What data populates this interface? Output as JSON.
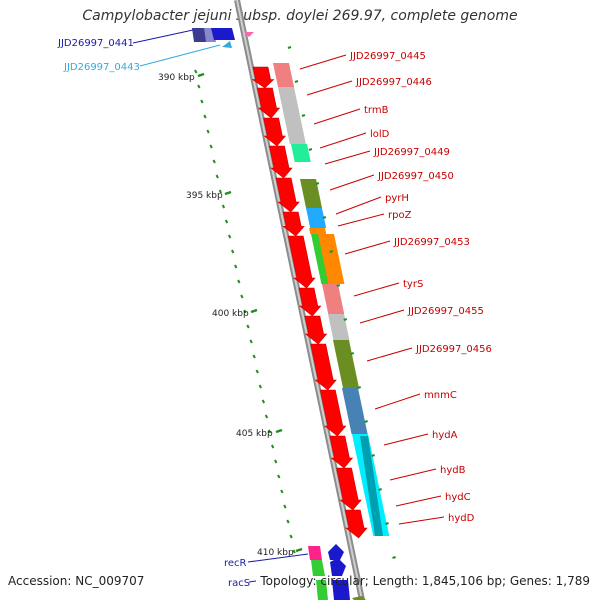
{
  "title": "Campylobacter jejuni subsp. doylei 269.97, complete genome",
  "accession": "Accession: NC_009707",
  "topology": "Topology: circular; Length: 1,845,106 bp; Genes: 1,789",
  "colors": {
    "backbone": "#8c8c8c",
    "forward_arrow": "#ff0000",
    "tick": "#1f8f1f",
    "label_red": "#c80000",
    "label_blue": "#1a1aaa",
    "label_cyan": "#33aadd"
  },
  "kbp_labels": [
    "390 kbp",
    "395 kbp",
    "400 kbp",
    "405 kbp",
    "410 kbp"
  ],
  "gene_labels": [
    "JJD26997_0445",
    "JJD26997_0446",
    "trmB",
    "lolD",
    "JJD26997_0449",
    "JJD26997_0450",
    "pyrH",
    "rpoZ",
    "JJD26997_0453",
    "tyrS",
    "JJD26997_0455",
    "JJD26997_0456",
    "mnmC",
    "hydA",
    "hydB",
    "hydC",
    "hydD"
  ],
  "left_labels": [
    "JJD26997_0441",
    "JJD26997_0443",
    "recR",
    "racS"
  ]
}
